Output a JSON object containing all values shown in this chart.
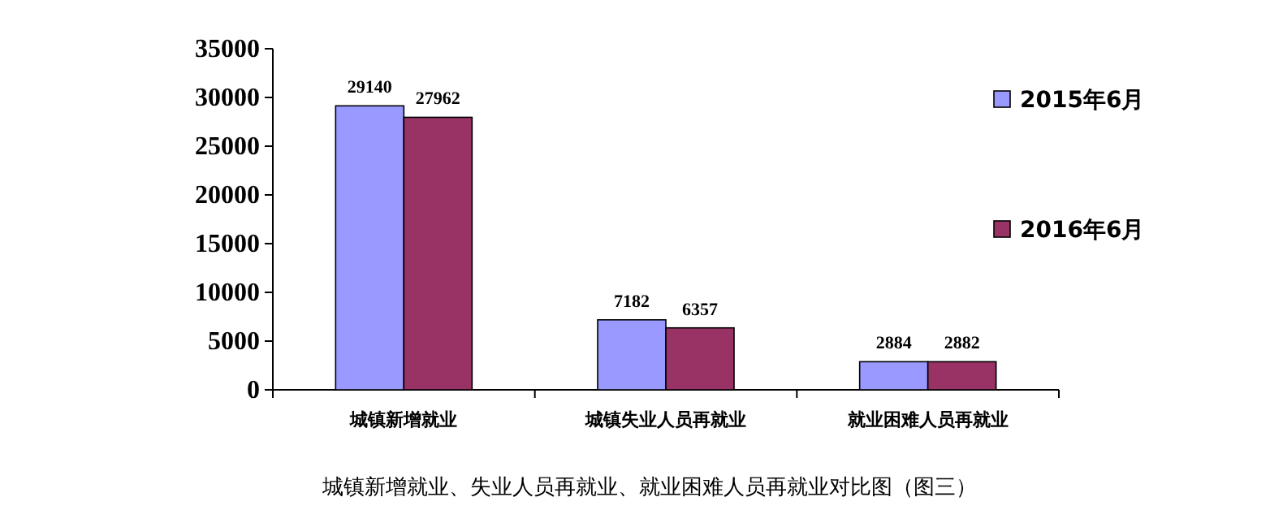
{
  "chart_data": {
    "type": "bar",
    "categories": [
      "城镇新增就业",
      "城镇失业人员再就业",
      "就业困难人员再就业"
    ],
    "series": [
      {
        "name": "2015年6月",
        "color": "#9999ff",
        "values": [
          29140,
          7182,
          2884
        ]
      },
      {
        "name": "2016年6月",
        "color": "#993366",
        "values": [
          27962,
          6357,
          2882
        ]
      }
    ],
    "ylim": [
      0,
      35000
    ],
    "yticks": [
      0,
      5000,
      10000,
      15000,
      20000,
      25000,
      30000,
      35000
    ],
    "data_labels": true,
    "legend": "right",
    "grid": false,
    "annotations": [
      "城镇新增就业、失业人员再就业、就业困难人员再就业对比图（图三）"
    ]
  }
}
